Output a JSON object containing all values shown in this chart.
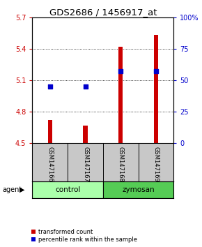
{
  "title": "GDS2686 / 1456917_at",
  "samples": [
    "GSM147166",
    "GSM147167",
    "GSM147168",
    "GSM147169"
  ],
  "red_values": [
    4.72,
    4.67,
    5.42,
    5.53
  ],
  "blue_values_pct": [
    45,
    45,
    57,
    57
  ],
  "ylim_left": [
    4.5,
    5.7
  ],
  "ylim_right": [
    0,
    100
  ],
  "yticks_left": [
    4.5,
    4.8,
    5.1,
    5.4,
    5.7
  ],
  "yticks_right": [
    0,
    25,
    50,
    75,
    100
  ],
  "ytick_labels_right": [
    "0",
    "25",
    "50",
    "75",
    "100%"
  ],
  "groups": [
    {
      "label": "control",
      "samples": [
        0,
        1
      ],
      "color": "#aaffaa"
    },
    {
      "label": "zymosan",
      "samples": [
        2,
        3
      ],
      "color": "#55cc55"
    }
  ],
  "group_row_label": "agent",
  "bar_color": "#CC0000",
  "dot_color": "#0000CC",
  "bar_width": 0.12,
  "dot_size": 18,
  "label_area_color": "#C8C8C8",
  "title_fontsize": 9.5,
  "tick_fontsize": 7,
  "label_fontsize": 6,
  "group_fontsize": 7.5,
  "legend_items": [
    "transformed count",
    "percentile rank within the sample"
  ],
  "legend_fontsize": 6
}
